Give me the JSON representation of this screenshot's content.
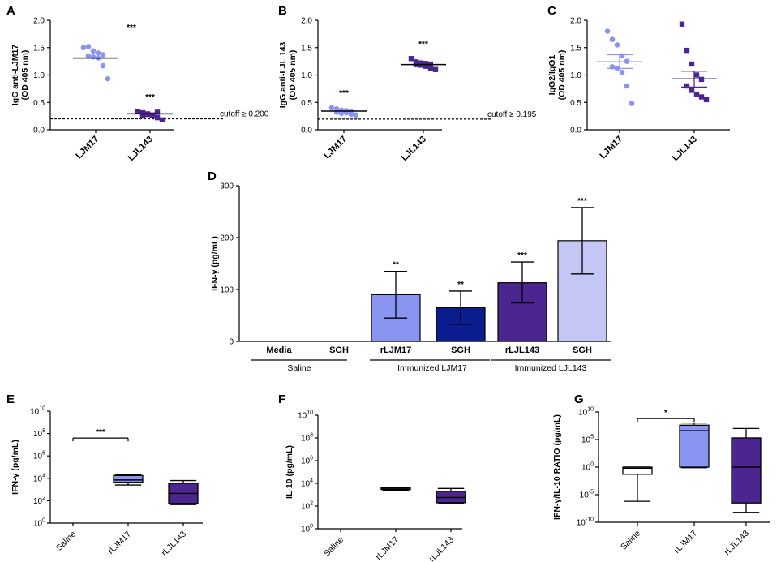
{
  "figure": {
    "colors": {
      "light_blue": "#8a95f2",
      "dark_blue": "#0b1c8f",
      "purple": "#4b2590",
      "pale_lavender": "#c4c6f5",
      "axis": "#000000"
    }
  },
  "chart_data": [
    {
      "panel": "A",
      "type": "scatter",
      "ylabel": "IgG anti-LJM17\n(OD 405 nm)",
      "ylim": [
        0,
        2.0
      ],
      "yticks": [
        "0.0",
        "0.5",
        "1.0",
        "1.5",
        "2.0"
      ],
      "categories": [
        "LJM17",
        "LJL143"
      ],
      "series": [
        {
          "name": "LJM17",
          "marker": "circle",
          "color": "#8a95f2",
          "values": [
            1.5,
            1.52,
            1.44,
            1.4,
            1.37,
            1.35,
            1.33,
            1.31,
            1.17,
            0.93
          ],
          "mean": 1.31
        },
        {
          "name": "LJL143",
          "marker": "square",
          "color": "#4b2590",
          "values": [
            0.33,
            0.31,
            0.29,
            0.27,
            0.32,
            0.25,
            0.28,
            0.26,
            0.22,
            0.18
          ],
          "mean": 0.29
        }
      ],
      "significance": [
        "***",
        "***"
      ],
      "cutoff": {
        "value": 0.2,
        "label": "cutoff ≥ 0.200"
      }
    },
    {
      "panel": "B",
      "type": "scatter",
      "ylabel": "IgG anti-LJL 143\n(OD 405 nm)",
      "ylim": [
        0,
        2.0
      ],
      "yticks": [
        "0.0",
        "0.5",
        "1.0",
        "1.5",
        "2.0"
      ],
      "categories": [
        "LJM17",
        "LJL143"
      ],
      "series": [
        {
          "name": "LJM17",
          "marker": "circle",
          "color": "#8a95f2",
          "values": [
            0.4,
            0.38,
            0.36,
            0.35,
            0.33,
            0.32,
            0.3,
            0.31,
            0.28,
            0.27
          ],
          "mean": 0.34
        },
        {
          "name": "LJL143",
          "marker": "square",
          "color": "#4b2590",
          "values": [
            1.3,
            1.24,
            1.22,
            1.21,
            1.2,
            1.19,
            1.18,
            1.16,
            1.12,
            1.1
          ],
          "mean": 1.19
        }
      ],
      "significance": [
        "***",
        "***"
      ],
      "cutoff": {
        "value": 0.195,
        "label": "cutoff ≥ 0.195"
      }
    },
    {
      "panel": "C",
      "type": "scatter",
      "ylabel": "IgG2/IgG1\n(OD 405 nm)",
      "ylim": [
        0,
        2.0
      ],
      "yticks": [
        "0.0",
        "0.5",
        "1.0",
        "1.5",
        "2.0"
      ],
      "categories": [
        "LJM17",
        "LJL143"
      ],
      "series": [
        {
          "name": "LJM17",
          "marker": "circle",
          "color": "#8a95f2",
          "values": [
            1.8,
            1.65,
            1.55,
            1.35,
            1.25,
            1.15,
            1.12,
            1.05,
            0.8,
            0.48
          ],
          "mean": 1.24,
          "sem": [
            1.12,
            1.37
          ]
        },
        {
          "name": "LJL143",
          "marker": "square",
          "color": "#4b2590",
          "values": [
            1.93,
            1.45,
            1.2,
            1.0,
            0.92,
            0.8,
            0.72,
            0.65,
            0.6,
            0.55
          ],
          "mean": 0.93,
          "sem": [
            0.78,
            1.07
          ]
        }
      ],
      "significance": []
    },
    {
      "panel": "D",
      "type": "bar",
      "ylabel": "IFN-γ (pg/mL)",
      "ylim": [
        0,
        300
      ],
      "yticks": [
        "0",
        "100",
        "200",
        "300"
      ],
      "categories": [
        "Media",
        "SGH",
        "rLJM17",
        "SGH",
        "rLJL143",
        "SGH"
      ],
      "values": [
        0,
        0,
        90,
        65,
        113,
        194
      ],
      "err_low": [
        0,
        0,
        45,
        33,
        74,
        130
      ],
      "err_high": [
        0,
        0,
        135,
        97,
        153,
        258
      ],
      "bar_colors": [
        "#ffffff",
        "#ffffff",
        "#8a95f2",
        "#0b1c8f",
        "#4b2590",
        "#c4c6f5"
      ],
      "significance": [
        "",
        "",
        "**",
        "**",
        "***",
        "***"
      ],
      "groups": [
        "Saline",
        "Immunized LJM17",
        "Immunized LJL143"
      ]
    },
    {
      "panel": "E",
      "type": "box",
      "ylabel": "IFN-γ (pg/mL)",
      "yscale": "log",
      "ylim_exp": [
        0,
        10
      ],
      "ytick_base": "10",
      "ytick_exp": [
        "0",
        "2",
        "4",
        "6",
        "8",
        "10"
      ],
      "categories": [
        "Saline",
        "rLJM17",
        "rLJL143"
      ],
      "box_colors": [
        "#ffffff",
        "#8a95f2",
        "#4b2590"
      ],
      "boxes_log10": [
        null,
        {
          "min": 3.4,
          "q1": 3.65,
          "median": 3.85,
          "q3": 4.25,
          "max": 4.3
        },
        {
          "min": 1.65,
          "q1": 1.75,
          "median": 2.65,
          "q3": 3.55,
          "max": 3.8
        }
      ],
      "significance": [
        {
          "from": "Saline",
          "to": "rLJM17",
          "label": "***"
        }
      ]
    },
    {
      "panel": "F",
      "type": "box",
      "ylabel": "IL-10 (pg/mL)",
      "yscale": "log",
      "ylim_exp": [
        0,
        10
      ],
      "ytick_base": "10",
      "ytick_exp": [
        "0",
        "2",
        "4",
        "6",
        "8",
        "10"
      ],
      "categories": [
        "Saline",
        "rLJM17",
        "rLJL143"
      ],
      "box_colors": [
        "#ffffff",
        "#8a95f2",
        "#4b2590"
      ],
      "boxes_log10": [
        null,
        {
          "min": 3.4,
          "q1": 3.45,
          "median": 3.5,
          "q3": 3.6,
          "max": 3.65
        },
        {
          "min": 2.2,
          "q1": 2.3,
          "median": 2.75,
          "q3": 3.3,
          "max": 3.55
        }
      ],
      "significance": []
    },
    {
      "panel": "G",
      "type": "box",
      "ylabel": "IFN-γ/IL-10 RATIO (pg/mL)",
      "yscale": "log",
      "ylim_exp": [
        -10,
        10
      ],
      "ytick_base": "10",
      "ytick_exp": [
        "-10",
        "-5",
        "0",
        "5",
        "10"
      ],
      "categories": [
        "Saline",
        "rLJM17",
        "rLJL143"
      ],
      "box_colors": [
        "#ffffff",
        "#8a95f2",
        "#4b2590"
      ],
      "boxes_log10": [
        {
          "min": -6.2,
          "q1": -1.3,
          "median": -0.2,
          "q3": 0.0,
          "max": 0.0
        },
        {
          "min": -0.1,
          "q1": 0.0,
          "median": 6.6,
          "q3": 7.6,
          "max": 8.0
        },
        {
          "min": -8.2,
          "q1": -6.5,
          "median": 0.0,
          "q3": 5.3,
          "max": 7.0
        }
      ],
      "significance": [
        {
          "from": "Saline",
          "to": "rLJM17",
          "label": "*"
        }
      ]
    }
  ]
}
